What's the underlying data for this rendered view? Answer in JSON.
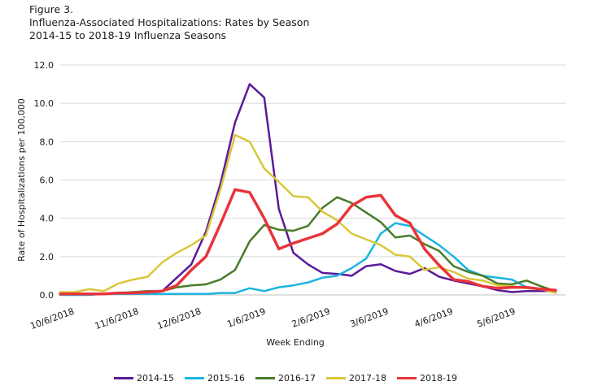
{
  "figure_label": "Figure 3.",
  "chart_data": {
    "type": "line",
    "title": "Influenza-Associated Hospitalizations: Rates by Season",
    "subtitle": "2014-15  to 2018-19  Influenza Seasons",
    "xlabel": "Week Ending",
    "ylabel": "Rate of Hospitalizations per 100,000",
    "ylim": [
      0,
      12
    ],
    "y_ticks": [
      "0.0",
      "2.0",
      "4.0",
      "6.0",
      "8.0",
      "10.0",
      "12.0"
    ],
    "x_tick_labels": [
      "10/6/2018",
      "11/6/2018",
      "12/6/2018",
      "1/6/2019",
      "2/6/2019",
      "3/6/2019",
      "4/6/2019",
      "5/6/2019"
    ],
    "x": [
      "9/29/2018",
      "10/6/2018",
      "10/13/2018",
      "10/20/2018",
      "10/27/2018",
      "11/3/2018",
      "11/10/2018",
      "11/17/2018",
      "11/24/2018",
      "12/1/2018",
      "12/8/2018",
      "12/15/2018",
      "12/22/2018",
      "12/29/2018",
      "1/5/2019",
      "1/12/2019",
      "1/19/2019",
      "1/26/2019",
      "2/2/2019",
      "2/9/2019",
      "2/16/2019",
      "2/23/2019",
      "3/2/2019",
      "3/9/2019",
      "3/16/2019",
      "3/23/2019",
      "3/30/2019",
      "4/6/2019",
      "4/13/2019",
      "4/20/2019",
      "4/27/2019",
      "5/4/2019",
      "5/11/2019",
      "5/18/2019",
      "5/25/2019"
    ],
    "grid": true,
    "legend_position": "bottom",
    "series": [
      {
        "name": "2014-15",
        "color": "#5b1a9a",
        "values": [
          0.05,
          0.05,
          0.05,
          0.05,
          0.05,
          0.1,
          0.15,
          0.2,
          0.9,
          1.6,
          3.3,
          5.8,
          9.0,
          11.0,
          10.3,
          4.5,
          2.2,
          1.6,
          1.15,
          1.1,
          1.0,
          1.5,
          1.6,
          1.25,
          1.1,
          1.4,
          0.95,
          0.75,
          0.6,
          0.45,
          0.25,
          0.15,
          0.2,
          0.2,
          0.2
        ]
      },
      {
        "name": "2015-16",
        "color": "#1ab5e0",
        "values": [
          0.0,
          0.0,
          0.0,
          0.05,
          0.05,
          0.05,
          0.05,
          0.05,
          0.05,
          0.05,
          0.05,
          0.1,
          0.1,
          0.35,
          0.2,
          0.4,
          0.5,
          0.65,
          0.9,
          1.0,
          1.4,
          1.9,
          3.2,
          3.75,
          3.6,
          3.1,
          2.6,
          2.0,
          1.3,
          1.0,
          0.9,
          0.8,
          0.4,
          0.3,
          0.2
        ]
      },
      {
        "name": "2016-17",
        "color": "#4a7b2a",
        "values": [
          0.05,
          0.05,
          0.05,
          0.05,
          0.1,
          0.15,
          0.2,
          0.2,
          0.4,
          0.5,
          0.55,
          0.8,
          1.3,
          2.8,
          3.65,
          3.4,
          3.35,
          3.6,
          4.55,
          5.1,
          4.8,
          4.3,
          3.8,
          3.0,
          3.1,
          2.65,
          2.3,
          1.5,
          1.2,
          1.0,
          0.6,
          0.55,
          0.75,
          0.45,
          0.2
        ]
      },
      {
        "name": "2017-18",
        "color": "#d9c73a",
        "values": [
          0.15,
          0.15,
          0.3,
          0.2,
          0.6,
          0.8,
          0.95,
          1.7,
          2.2,
          2.6,
          3.1,
          5.5,
          8.35,
          8.0,
          6.6,
          5.9,
          5.15,
          5.1,
          4.35,
          3.9,
          3.2,
          2.9,
          2.6,
          2.1,
          2.0,
          1.3,
          1.45,
          1.2,
          0.85,
          0.75,
          0.5,
          0.45,
          0.35,
          0.3,
          0.1
        ]
      },
      {
        "name": "2018-19",
        "color": "#e8343a",
        "values": [
          0.05,
          0.05,
          0.05,
          0.05,
          0.1,
          0.1,
          0.15,
          0.2,
          0.5,
          1.3,
          2.0,
          3.7,
          5.5,
          5.35,
          4.0,
          2.4,
          2.7,
          2.95,
          3.2,
          3.7,
          4.65,
          5.1,
          5.2,
          4.15,
          3.75,
          2.4,
          1.55,
          0.8,
          0.7,
          0.45,
          0.35,
          0.4,
          0.4,
          0.3,
          0.25
        ]
      }
    ]
  }
}
